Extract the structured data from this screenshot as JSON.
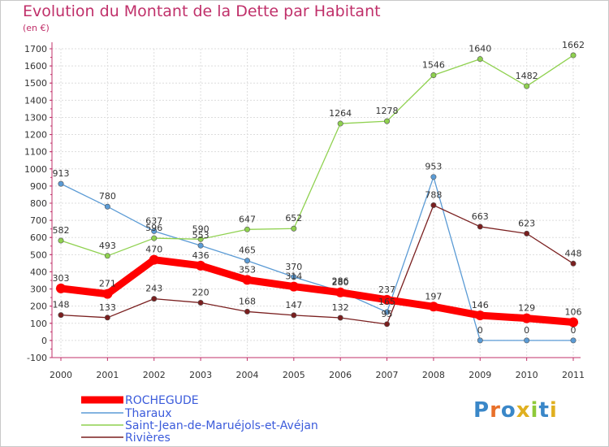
{
  "title": "Evolution du Montant de la Dette par Habitant",
  "unit": "(en €)",
  "logo": "Proxiti",
  "chart_data": {
    "type": "line",
    "x": [
      "2000",
      "2001",
      "2002",
      "2003",
      "2004",
      "2005",
      "2006",
      "2007",
      "2008",
      "2009",
      "2010",
      "2011"
    ],
    "ylim": [
      -100,
      1700
    ],
    "yticks": [
      -100,
      0,
      100,
      200,
      300,
      400,
      500,
      600,
      700,
      800,
      900,
      1000,
      1100,
      1200,
      1300,
      1400,
      1500,
      1600,
      1700
    ],
    "grid": true,
    "legend_position": "bottom-left",
    "series": [
      {
        "name": "ROCHEGUDE",
        "color": "#ff0000",
        "values": [
          303,
          271,
          470,
          436,
          353,
          314,
          280,
          237,
          197,
          146,
          129,
          106
        ]
      },
      {
        "name": "Tharaux",
        "color": "#5b9bd5",
        "values": [
          913,
          780,
          637,
          553,
          465,
          370,
          286,
          165,
          953,
          0,
          0,
          0
        ]
      },
      {
        "name": "Saint-Jean-de-Maruéjols-et-Avéjan",
        "color": "#8fd14f",
        "values": [
          582,
          493,
          596,
          590,
          647,
          652,
          1264,
          1278,
          1546,
          1640,
          1482,
          1662
        ]
      },
      {
        "name": "Rivières",
        "color": "#7a1f1f",
        "values": [
          148,
          133,
          243,
          220,
          168,
          147,
          132,
          95,
          788,
          663,
          623,
          448
        ]
      }
    ]
  }
}
